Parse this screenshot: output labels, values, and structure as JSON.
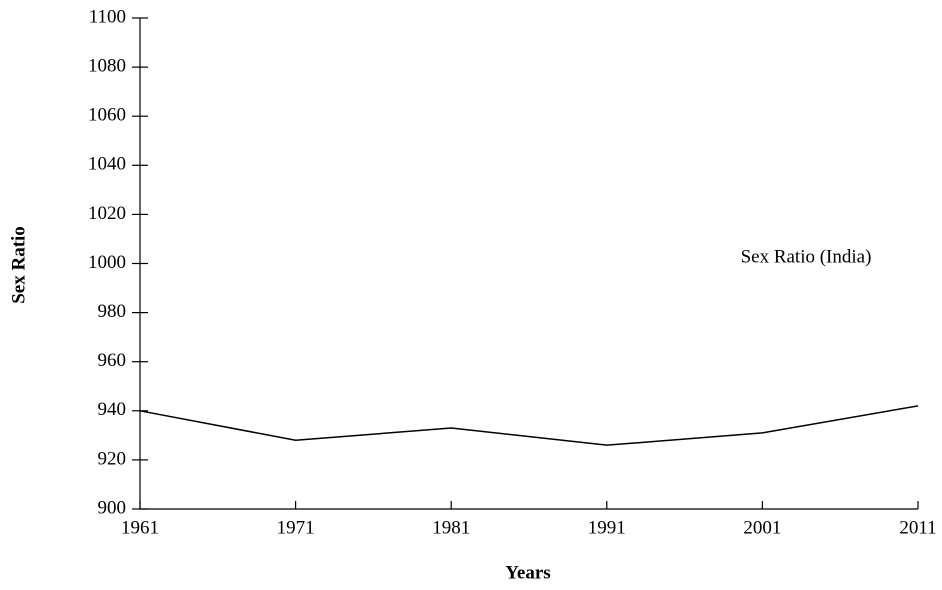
{
  "chart_data": {
    "type": "line",
    "annotation": "Sex Ratio (India)",
    "x_label": "Years",
    "y_label": "Sex Ratio",
    "x": [
      1961,
      1971,
      1981,
      1991,
      2001,
      2011
    ],
    "series": [
      {
        "color": "#000000",
        "values": [
          940,
          928,
          933,
          926,
          931,
          942
        ]
      }
    ],
    "xlim": [
      1961,
      2011
    ],
    "xticks": [
      1961,
      1971,
      1981,
      1991,
      2001,
      2011
    ],
    "ylim": [
      900,
      1100
    ],
    "yticks": [
      900,
      920,
      940,
      960,
      980,
      1000,
      1020,
      1040,
      1060,
      1080,
      1100
    ],
    "grid": false
  }
}
